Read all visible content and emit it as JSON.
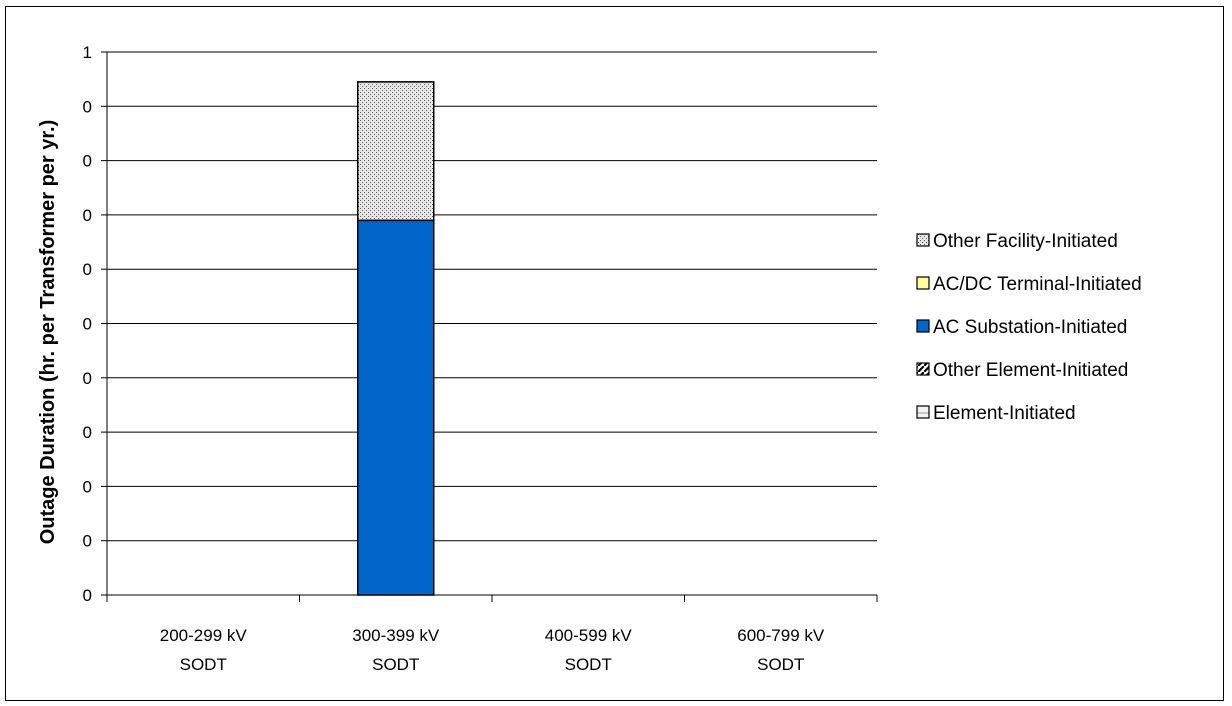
{
  "chart_data": {
    "type": "bar",
    "stacked": true,
    "title": "",
    "xlabel": "",
    "ylabel": "Outage Duration (hr. per Transformer per yr.)",
    "ylim": [
      0,
      1
    ],
    "y_tick_values": [
      0,
      0.1,
      0.2,
      0.3,
      0.4,
      0.5,
      0.6,
      0.7,
      0.8,
      0.9,
      1
    ],
    "y_tick_labels": [
      "0",
      "0",
      "0",
      "0",
      "0",
      "0",
      "0",
      "0",
      "0",
      "0",
      "1"
    ],
    "grid": true,
    "legend_position": "right",
    "categories": [
      [
        "200-299 kV",
        "SODT"
      ],
      [
        "300-399 kV",
        "SODT"
      ],
      [
        "400-599 kV",
        "SODT"
      ],
      [
        "600-799 kV",
        "SODT"
      ]
    ],
    "series": [
      {
        "name": "Element-Initiated",
        "values": [
          0,
          0,
          0,
          0
        ],
        "color": "#ffffff",
        "pattern": "cross"
      },
      {
        "name": "Other Element-Initiated",
        "values": [
          0,
          0,
          0,
          0
        ],
        "color": "#000000",
        "pattern": "diagonal"
      },
      {
        "name": "AC Substation-Initiated",
        "values": [
          0,
          0.69,
          0,
          0
        ],
        "color": "#0066cc",
        "pattern": "solid"
      },
      {
        "name": "AC/DC Terminal-Initiated",
        "values": [
          0,
          0,
          0,
          0
        ],
        "color": "#ffff99",
        "pattern": "solid"
      },
      {
        "name": "Other Facility-Initiated",
        "values": [
          0,
          0.255,
          0,
          0
        ],
        "color": "#c8c8c8",
        "pattern": "dots"
      }
    ],
    "legend_order": [
      "Other Facility-Initiated",
      "AC/DC Terminal-Initiated",
      "AC Substation-Initiated",
      "Other Element-Initiated",
      "Element-Initiated"
    ]
  }
}
